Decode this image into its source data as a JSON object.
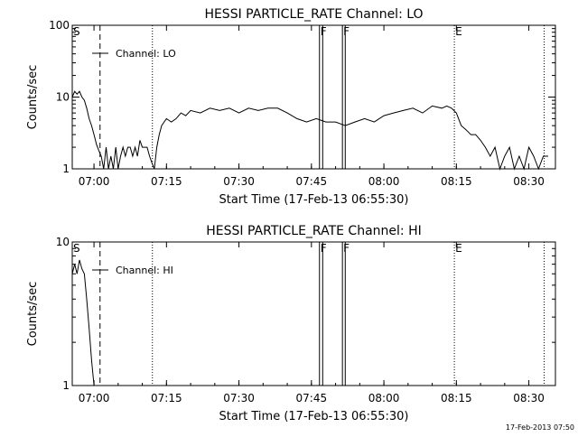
{
  "chart_data": [
    {
      "type": "line",
      "title": "HESSI PARTICLE_RATE Channel: LO",
      "xlabel": "Start Time (17-Feb-13 06:55:30)",
      "ylabel": "Counts/sec",
      "y_scale": "log",
      "ylim": [
        1,
        100
      ],
      "y_ticks": [
        1,
        10,
        100
      ],
      "y_tick_labels": [
        "1",
        "10",
        "100"
      ],
      "x_axis_unit": "clock time",
      "xlim": [
        "06:55:30",
        "08:35:30"
      ],
      "x_ticks": [
        "07:00",
        "07:15",
        "07:30",
        "07:45",
        "08:00",
        "08:15",
        "08:30"
      ],
      "legend": {
        "position": "top-left",
        "entries": [
          "Channel: LO"
        ]
      },
      "grid": false,
      "markers": [
        {
          "label": "S",
          "time": "06:55:30",
          "style": "text"
        },
        {
          "label": "",
          "time": "07:01:15",
          "style": "dashed"
        },
        {
          "label": "",
          "time": "07:12:05",
          "style": "dotted"
        },
        {
          "label": "F",
          "time": "07:46:40",
          "style": "solid-pair",
          "end": "07:47:20"
        },
        {
          "label": "F",
          "time": "07:51:25",
          "style": "solid-pair",
          "end": "07:52:00"
        },
        {
          "label": "E",
          "time": "08:14:35",
          "style": "dotted"
        },
        {
          "label": "",
          "time": "08:33:10",
          "style": "dotted"
        }
      ],
      "series": [
        {
          "name": "Channel: LO",
          "x": [
            "06:55:30",
            "06:56:00",
            "06:56:30",
            "06:57:00",
            "06:57:30",
            "06:58:00",
            "06:58:30",
            "06:59:00",
            "06:59:30",
            "07:00:00",
            "07:00:30",
            "07:01:00",
            "07:01:30",
            "07:02:00",
            "07:02:30",
            "07:03:00",
            "07:03:30",
            "07:04:00",
            "07:04:30",
            "07:05:00",
            "07:05:30",
            "07:06:00",
            "07:06:30",
            "07:07:00",
            "07:07:30",
            "07:08:00",
            "07:08:30",
            "07:09:00",
            "07:09:30",
            "07:10:00",
            "07:10:30",
            "07:11:00",
            "07:11:30",
            "07:12:00",
            "07:12:30",
            "07:13:00",
            "07:13:30",
            "07:14:00",
            "07:15:00",
            "07:16:00",
            "07:17:00",
            "07:18:00",
            "07:19:00",
            "07:20:00",
            "07:22:00",
            "07:24:00",
            "07:26:00",
            "07:28:00",
            "07:30:00",
            "07:32:00",
            "07:34:00",
            "07:36:00",
            "07:38:00",
            "07:40:00",
            "07:42:00",
            "07:44:00",
            "07:46:00",
            "07:48:00",
            "07:50:00",
            "07:52:00",
            "07:54:00",
            "07:56:00",
            "07:58:00",
            "08:00:00",
            "08:02:00",
            "08:04:00",
            "08:06:00",
            "08:08:00",
            "08:10:00",
            "08:12:00",
            "08:13:00",
            "08:14:00",
            "08:15:00",
            "08:16:00",
            "08:17:00",
            "08:18:00",
            "08:19:00",
            "08:20:00",
            "08:21:00",
            "08:22:00",
            "08:23:00",
            "08:24:00",
            "08:25:00",
            "08:26:00",
            "08:27:00",
            "08:28:00",
            "08:29:00",
            "08:30:00",
            "08:31:00",
            "08:32:00",
            "08:33:00",
            "08:34:00"
          ],
          "y": [
            10,
            12,
            11,
            12,
            10,
            9,
            7,
            5,
            4,
            3,
            2.2,
            1.8,
            1.5,
            1,
            2,
            1,
            1.5,
            1,
            2,
            1,
            1.5,
            2,
            1.5,
            2,
            2,
            1.5,
            2,
            1.5,
            2.5,
            2,
            2,
            2,
            1.5,
            1.2,
            1,
            2,
            3,
            4,
            5,
            4.5,
            5,
            6,
            5.5,
            6.5,
            6,
            7,
            6.5,
            7,
            6,
            7,
            6.5,
            7,
            7,
            6,
            5,
            4.5,
            5,
            4.5,
            4.5,
            4,
            4.5,
            5,
            4.5,
            5.5,
            6,
            6.5,
            7,
            6,
            7.5,
            7,
            7.5,
            7,
            6,
            4,
            3.5,
            3,
            3,
            2.5,
            2,
            1.5,
            2,
            1,
            1.5,
            2,
            1,
            1.5,
            1,
            2,
            1.5,
            1,
            1.5,
            1.5
          ]
        }
      ]
    },
    {
      "type": "line",
      "title": "HESSI PARTICLE_RATE Channel: HI",
      "xlabel": "Start Time (17-Feb-13 06:55:30)",
      "ylabel": "Counts/sec",
      "y_scale": "log",
      "ylim": [
        1,
        10
      ],
      "y_ticks": [
        1,
        10
      ],
      "y_tick_labels": [
        "1",
        "10"
      ],
      "x_axis_unit": "clock time",
      "xlim": [
        "06:55:30",
        "08:35:30"
      ],
      "x_ticks": [
        "07:00",
        "07:15",
        "07:30",
        "07:45",
        "08:00",
        "08:15",
        "08:30"
      ],
      "legend": {
        "position": "top-left",
        "entries": [
          "Channel: HI"
        ]
      },
      "grid": false,
      "markers": [
        {
          "label": "S",
          "time": "06:55:30",
          "style": "text"
        },
        {
          "label": "",
          "time": "07:01:15",
          "style": "dashed"
        },
        {
          "label": "",
          "time": "07:12:05",
          "style": "dotted"
        },
        {
          "label": "F",
          "time": "07:46:40",
          "style": "solid-pair",
          "end": "07:47:20"
        },
        {
          "label": "F",
          "time": "07:51:25",
          "style": "solid-pair",
          "end": "07:52:00"
        },
        {
          "label": "E",
          "time": "08:14:35",
          "style": "dotted"
        },
        {
          "label": "",
          "time": "08:33:10",
          "style": "dotted"
        }
      ],
      "series": [
        {
          "name": "Channel: HI",
          "x": [
            "06:55:30",
            "06:56:00",
            "06:56:30",
            "06:57:00",
            "06:57:30",
            "06:58:00",
            "06:58:30",
            "06:59:00",
            "06:59:30",
            "07:00:00"
          ],
          "y": [
            6,
            7,
            6,
            7.5,
            6.5,
            6,
            4,
            2.5,
            1.5,
            1
          ]
        }
      ]
    }
  ],
  "footer": {
    "stamp": "17-Feb-2013 07:50"
  },
  "colors": {
    "axis": "#000000",
    "line": "#000000",
    "background": "#ffffff"
  }
}
